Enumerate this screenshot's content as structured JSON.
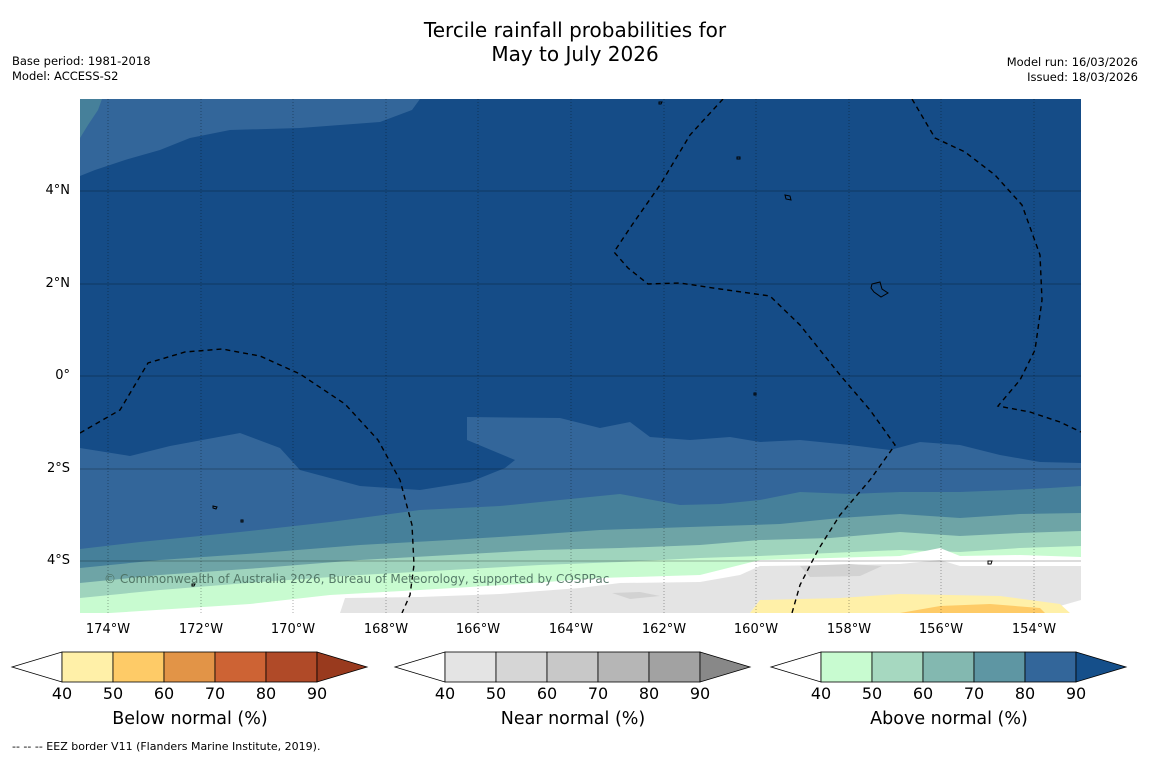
{
  "title": {
    "line1": "Tercile rainfall probabilities for",
    "line2": "May to July 2026"
  },
  "meta_left": {
    "base_period": "Base period: 1981-2018",
    "model": "Model: ACCESS-S2"
  },
  "meta_right": {
    "model_run": "Model run: 16/03/2026",
    "issued": "Issued: 18/03/2026"
  },
  "lat_labels": [
    "4°N",
    "2°N",
    "0°",
    "2°S",
    "4°S"
  ],
  "lon_labels": [
    "174°W",
    "172°W",
    "170°W",
    "168°W",
    "166°W",
    "164°W",
    "162°W",
    "160°W",
    "158°W",
    "156°W",
    "154°W"
  ],
  "copyright": "© Commonwealth of Australia 2026, Bureau of Meteorology, supported by COSPPac",
  "footnote": "--  --  -- EEZ border V11 (Flanders Marine Institute, 2019).",
  "colorbars": {
    "below": {
      "label": "Below normal (%)",
      "ticks": [
        "40",
        "50",
        "60",
        "70",
        "80",
        "90"
      ],
      "colors": [
        "#fff0a8",
        "#fecb67",
        "#e29447",
        "#cd6334",
        "#b04a28",
        "#993a1e"
      ]
    },
    "near": {
      "label": "Near normal (%)",
      "ticks": [
        "40",
        "50",
        "60",
        "70",
        "80",
        "90"
      ],
      "colors": [
        "#e4e4e4",
        "#d6d6d6",
        "#c8c8c8",
        "#b6b6b6",
        "#a2a2a2",
        "#888888"
      ]
    },
    "above": {
      "label": "Above normal (%)",
      "ticks": [
        "40",
        "50",
        "60",
        "70",
        "80",
        "90"
      ],
      "colors": [
        "#c8fbd0",
        "#a6d8c0",
        "#83b8b0",
        "#5e96a3",
        "#33669a",
        "#154f8a"
      ]
    }
  },
  "field_colors": {
    "above_80": "#154c87",
    "above_70": "#33669a",
    "above_60": "#46809a",
    "above_50": "#6ea4a6",
    "above_40": "#9fd4bd",
    "above_35": "#c8fbd0",
    "near_40": "#e4e4e4",
    "near_50": "#d2d2d2",
    "below_40": "#fff0a8",
    "below_50": "#fecb67"
  }
}
